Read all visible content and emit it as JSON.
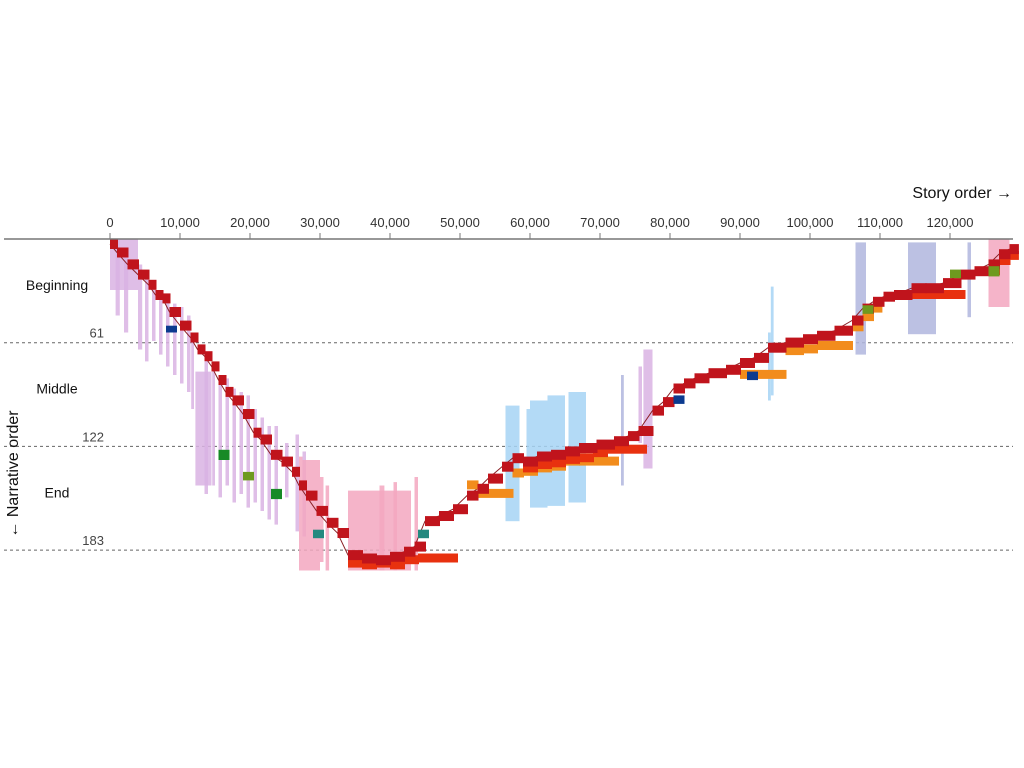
{
  "colors": {
    "scene": "#c0141c",
    "scene_sub": "#e8310f",
    "orange": "#f28c1c",
    "lilac": "#d9b3e3",
    "pink": "#f3a7c0",
    "lightblue": "#a6d3f5",
    "periwinkle": "#b0b6de",
    "green": "#178a26",
    "olive": "#6e9a1f",
    "navy": "#0b3a8f",
    "teal": "#24897f",
    "axis": "#777777",
    "divider": "#666666"
  },
  "chart_data": {
    "type": "timeline",
    "title": "",
    "x_axis_title": "Story order →",
    "y_axis_title": "← Narrative order",
    "xlim": [
      0,
      129000
    ],
    "ylim": [
      0,
      192
    ],
    "x_ticks": [
      "0",
      "10,000",
      "20,000",
      "30,000",
      "40,000",
      "50,000",
      "60,000",
      "70,000",
      "80,000",
      "90,000",
      "100,000",
      "110,000",
      "120,000"
    ],
    "x_tick_values": [
      0,
      10000,
      20000,
      30000,
      40000,
      50000,
      60000,
      70000,
      80000,
      90000,
      100000,
      110000,
      120000
    ],
    "dividers": [
      {
        "value": 61,
        "label": "61"
      },
      {
        "value": 122,
        "label": "122"
      },
      {
        "value": 183,
        "label": "183"
      }
    ],
    "sections": [
      {
        "label": "Beginning",
        "center": 27
      },
      {
        "label": "Middle",
        "center": 88
      },
      {
        "label": "End",
        "center": 149
      }
    ],
    "main_scenes": [
      [
        0,
        0
      ],
      [
        1000,
        5
      ],
      [
        2500,
        12
      ],
      [
        4000,
        18
      ],
      [
        5500,
        24
      ],
      [
        6500,
        30
      ],
      [
        7500,
        32
      ],
      [
        8500,
        40
      ],
      [
        10000,
        48
      ],
      [
        11500,
        55
      ],
      [
        12500,
        62
      ],
      [
        13500,
        66
      ],
      [
        14500,
        72
      ],
      [
        15500,
        80
      ],
      [
        16500,
        87
      ],
      [
        17500,
        92
      ],
      [
        19000,
        100
      ],
      [
        20500,
        111
      ],
      [
        21500,
        115
      ],
      [
        23000,
        124
      ],
      [
        24500,
        128
      ],
      [
        26000,
        134
      ],
      [
        27000,
        142
      ],
      [
        28000,
        148
      ],
      [
        29500,
        157
      ],
      [
        31000,
        164
      ],
      [
        32500,
        170
      ],
      [
        34000,
        183
      ],
      [
        36000,
        185
      ],
      [
        38000,
        186
      ],
      [
        40000,
        184
      ],
      [
        42000,
        181
      ],
      [
        43500,
        178
      ],
      [
        45000,
        163
      ],
      [
        47000,
        160
      ],
      [
        49000,
        156
      ],
      [
        51000,
        148
      ],
      [
        52500,
        144
      ],
      [
        54000,
        138
      ],
      [
        56000,
        131
      ],
      [
        57500,
        126
      ],
      [
        59000,
        128
      ],
      [
        61000,
        125
      ],
      [
        63000,
        124
      ],
      [
        65000,
        122
      ],
      [
        67000,
        120
      ],
      [
        69500,
        118
      ],
      [
        72000,
        116
      ],
      [
        74000,
        113
      ],
      [
        75500,
        110
      ],
      [
        77500,
        98
      ],
      [
        79000,
        93
      ],
      [
        80500,
        85
      ],
      [
        82000,
        82
      ],
      [
        83500,
        79
      ],
      [
        85500,
        76
      ],
      [
        88000,
        74
      ],
      [
        90000,
        70
      ],
      [
        92000,
        67
      ],
      [
        94000,
        61
      ],
      [
        96500,
        58
      ],
      [
        99000,
        56
      ],
      [
        101000,
        54
      ],
      [
        103500,
        51
      ],
      [
        106000,
        45
      ],
      [
        107500,
        38
      ],
      [
        109000,
        34
      ],
      [
        110500,
        31
      ],
      [
        112000,
        30
      ],
      [
        114500,
        26
      ],
      [
        116500,
        26
      ],
      [
        119000,
        23
      ],
      [
        121500,
        18
      ],
      [
        123500,
        16
      ],
      [
        125500,
        12
      ],
      [
        127000,
        6
      ],
      [
        128500,
        3
      ]
    ],
    "sub_scenes": [
      [
        34000,
        188
      ],
      [
        36000,
        189
      ],
      [
        38000,
        188
      ],
      [
        40000,
        189
      ],
      [
        42000,
        186
      ],
      [
        44000,
        185
      ],
      [
        59000,
        132
      ],
      [
        61000,
        130
      ],
      [
        63000,
        129
      ],
      [
        65000,
        127
      ],
      [
        67000,
        126
      ],
      [
        69000,
        123
      ],
      [
        71000,
        121
      ],
      [
        114500,
        30
      ],
      [
        116500,
        30
      ],
      [
        125500,
        16
      ],
      [
        127000,
        10
      ],
      [
        128500,
        7
      ]
    ],
    "orange_scenes": [
      [
        51000,
        142
      ],
      [
        52500,
        147
      ],
      [
        57500,
        135
      ],
      [
        59000,
        134
      ],
      [
        61000,
        132
      ],
      [
        63000,
        131
      ],
      [
        65000,
        128
      ],
      [
        67000,
        128
      ],
      [
        90000,
        77
      ],
      [
        92000,
        77
      ],
      [
        96500,
        63
      ],
      [
        99000,
        62
      ],
      [
        101000,
        60
      ],
      [
        106000,
        49
      ],
      [
        107500,
        43
      ],
      [
        109000,
        38
      ]
    ],
    "accents": [
      {
        "color": "green",
        "x": 15500,
        "y": 124,
        "h": 6
      },
      {
        "color": "olive",
        "x": 19000,
        "y": 137,
        "h": 5
      },
      {
        "color": "green",
        "x": 23000,
        "y": 147,
        "h": 6
      },
      {
        "color": "teal",
        "x": 29000,
        "y": 171,
        "h": 5
      },
      {
        "color": "teal",
        "x": 44000,
        "y": 171,
        "h": 5
      },
      {
        "color": "navy",
        "x": 8000,
        "y": 51,
        "h": 4
      },
      {
        "color": "navy",
        "x": 80500,
        "y": 92,
        "h": 5
      },
      {
        "color": "navy",
        "x": 91000,
        "y": 78,
        "h": 5
      },
      {
        "color": "olive",
        "x": 107500,
        "y": 39,
        "h": 5
      },
      {
        "color": "olive",
        "x": 120000,
        "y": 18,
        "h": 5
      },
      {
        "color": "olive",
        "x": 125500,
        "y": 16,
        "h": 6
      }
    ],
    "flashbacks": [
      {
        "color": "lilac",
        "x0": 0,
        "x1": 4000,
        "y0": 0,
        "y1": 30
      },
      {
        "color": "lilac",
        "x0": 800,
        "x1": 1400,
        "y0": 0,
        "y1": 45
      },
      {
        "color": "lilac",
        "x0": 2000,
        "x1": 2600,
        "y0": 5,
        "y1": 55
      },
      {
        "color": "lilac",
        "x0": 4000,
        "x1": 4600,
        "y0": 15,
        "y1": 65
      },
      {
        "color": "lilac",
        "x0": 5000,
        "x1": 5500,
        "y0": 20,
        "y1": 72
      },
      {
        "color": "lilac",
        "x0": 6000,
        "x1": 6500,
        "y0": 25,
        "y1": 60
      },
      {
        "color": "lilac",
        "x0": 7000,
        "x1": 7500,
        "y0": 30,
        "y1": 68
      },
      {
        "color": "lilac",
        "x0": 8000,
        "x1": 8500,
        "y0": 35,
        "y1": 75
      },
      {
        "color": "lilac",
        "x0": 9000,
        "x1": 9500,
        "y0": 38,
        "y1": 80
      },
      {
        "color": "lilac",
        "x0": 10000,
        "x1": 10500,
        "y0": 40,
        "y1": 85
      },
      {
        "color": "lilac",
        "x0": 11000,
        "x1": 11500,
        "y0": 45,
        "y1": 90
      },
      {
        "color": "lilac",
        "x0": 11600,
        "x1": 12000,
        "y0": 60,
        "y1": 100
      },
      {
        "color": "lilac",
        "x0": 12200,
        "x1": 14500,
        "y0": 78,
        "y1": 145
      },
      {
        "color": "lilac",
        "x0": 13500,
        "x1": 14000,
        "y0": 70,
        "y1": 150
      },
      {
        "color": "lilac",
        "x0": 14600,
        "x1": 15000,
        "y0": 78,
        "y1": 145
      },
      {
        "color": "lilac",
        "x0": 15500,
        "x1": 16000,
        "y0": 80,
        "y1": 152
      },
      {
        "color": "lilac",
        "x0": 16500,
        "x1": 17000,
        "y0": 82,
        "y1": 145
      },
      {
        "color": "lilac",
        "x0": 17500,
        "x1": 18000,
        "y0": 88,
        "y1": 155
      },
      {
        "color": "lilac",
        "x0": 18500,
        "x1": 19000,
        "y0": 90,
        "y1": 150
      },
      {
        "color": "lilac",
        "x0": 19500,
        "x1": 20000,
        "y0": 92,
        "y1": 158
      },
      {
        "color": "lilac",
        "x0": 20500,
        "x1": 21000,
        "y0": 100,
        "y1": 155
      },
      {
        "color": "lilac",
        "x0": 21500,
        "x1": 22000,
        "y0": 105,
        "y1": 160
      },
      {
        "color": "lilac",
        "x0": 22500,
        "x1": 23000,
        "y0": 110,
        "y1": 165
      },
      {
        "color": "lilac",
        "x0": 23500,
        "x1": 24000,
        "y0": 110,
        "y1": 168
      },
      {
        "color": "lilac",
        "x0": 25000,
        "x1": 25500,
        "y0": 120,
        "y1": 152
      },
      {
        "color": "lilac",
        "x0": 26500,
        "x1": 27000,
        "y0": 115,
        "y1": 172
      },
      {
        "color": "lilac",
        "x0": 27500,
        "x1": 28000,
        "y0": 125,
        "y1": 175
      },
      {
        "color": "pink",
        "x0": 27000,
        "x1": 27500,
        "y0": 128,
        "y1": 195
      },
      {
        "color": "pink",
        "x0": 27500,
        "x1": 30000,
        "y0": 130,
        "y1": 195
      },
      {
        "color": "pink",
        "x0": 30000,
        "x1": 30500,
        "y0": 140,
        "y1": 190
      },
      {
        "color": "pink",
        "x0": 30800,
        "x1": 31300,
        "y0": 145,
        "y1": 195
      },
      {
        "color": "pink",
        "x0": 34000,
        "x1": 43000,
        "y0": 148,
        "y1": 195
      },
      {
        "color": "pink",
        "x0": 38500,
        "x1": 39200,
        "y0": 145,
        "y1": 195
      },
      {
        "color": "pink",
        "x0": 40500,
        "x1": 41000,
        "y0": 143,
        "y1": 195
      },
      {
        "color": "pink",
        "x0": 43500,
        "x1": 44000,
        "y0": 140,
        "y1": 195
      },
      {
        "color": "lightblue",
        "x0": 56500,
        "x1": 58500,
        "y0": 98,
        "y1": 166
      },
      {
        "color": "lightblue",
        "x0": 59500,
        "x1": 60000,
        "y0": 100,
        "y1": 130
      },
      {
        "color": "lightblue",
        "x0": 60000,
        "x1": 62500,
        "y0": 95,
        "y1": 158
      },
      {
        "color": "lightblue",
        "x0": 62500,
        "x1": 65000,
        "y0": 92,
        "y1": 157
      },
      {
        "color": "lightblue",
        "x0": 65500,
        "x1": 68000,
        "y0": 90,
        "y1": 155
      },
      {
        "color": "periwinkle",
        "x0": 73000,
        "x1": 73400,
        "y0": 80,
        "y1": 145
      },
      {
        "color": "lilac",
        "x0": 75500,
        "x1": 76000,
        "y0": 75,
        "y1": 120
      },
      {
        "color": "lilac",
        "x0": 76200,
        "x1": 77500,
        "y0": 65,
        "y1": 135
      },
      {
        "color": "lightblue",
        "x0": 94000,
        "x1": 94400,
        "y0": 55,
        "y1": 95
      },
      {
        "color": "lightblue",
        "x0": 94400,
        "x1": 94800,
        "y0": 28,
        "y1": 92
      },
      {
        "color": "periwinkle",
        "x0": 106500,
        "x1": 108000,
        "y0": 2,
        "y1": 68
      },
      {
        "color": "periwinkle",
        "x0": 114000,
        "x1": 118000,
        "y0": 2,
        "y1": 56
      },
      {
        "color": "periwinkle",
        "x0": 122500,
        "x1": 123000,
        "y0": 2,
        "y1": 46
      },
      {
        "color": "pink",
        "x0": 125500,
        "x1": 128500,
        "y0": 0,
        "y1": 40
      }
    ]
  }
}
